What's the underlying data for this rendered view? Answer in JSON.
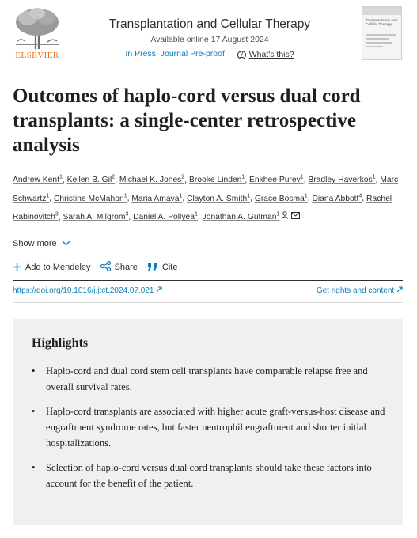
{
  "header": {
    "publisher": "ELSEVIER",
    "journal_title": "Transplantation and Cellular Therapy",
    "available_online": "Available online 17 August 2024",
    "in_press": "In Press, Journal Pre-proof",
    "whats_this": "What's this?",
    "cover": {
      "title": "Transplantation and Cellular Therapy"
    }
  },
  "article": {
    "title": "Outcomes of haplo-cord versus dual cord transplants: a single-center retrospective analysis",
    "authors": [
      {
        "name": "Andrew Kent",
        "sup": "1"
      },
      {
        "name": "Kellen B. Gil",
        "sup": "2"
      },
      {
        "name": "Michael K. Jones",
        "sup": "2"
      },
      {
        "name": "Brooke Linden",
        "sup": "1"
      },
      {
        "name": "Enkhee Purev",
        "sup": "1"
      },
      {
        "name": "Bradley Haverkos",
        "sup": "1"
      },
      {
        "name": "Marc Schwartz",
        "sup": "1"
      },
      {
        "name": "Christine McMahon",
        "sup": "1"
      },
      {
        "name": "Maria Amaya",
        "sup": "1"
      },
      {
        "name": "Clayton A. Smith",
        "sup": "1"
      },
      {
        "name": "Grace Bosma",
        "sup": "1"
      },
      {
        "name": "Diana Abbott",
        "sup": "4"
      },
      {
        "name": "Rachel Rabinovitch",
        "sup": "3"
      },
      {
        "name": "Sarah A. Milgrom",
        "sup": "3"
      },
      {
        "name": "Daniel A. Pollyea",
        "sup": "1"
      },
      {
        "name": "Jonathan A. Gutman",
        "sup": "1"
      }
    ],
    "show_more": "Show more",
    "actions": {
      "mendeley": "Add to Mendeley",
      "share": "Share",
      "cite": "Cite"
    },
    "doi": "https://doi.org/10.1016/j.jtct.2024.07.021",
    "rights": "Get rights and content"
  },
  "highlights": {
    "title": "Highlights",
    "items": [
      "Haplo-cord and dual cord stem cell transplants have comparable relapse free and overall survival rates.",
      "Haplo-cord transplants are associated with higher acute graft-versus-host disease and engraftment syndrome rates, but faster neutrophil engraftment and shorter initial hospitalizations.",
      "Selection of haplo-cord versus dual cord transplants should take these factors into account for the benefit of the patient."
    ]
  },
  "colors": {
    "link": "#0c7dbb",
    "elsevier_orange": "#e9711c",
    "highlight_bg": "#f0f0f0"
  },
  "icons": [
    "elsevier-tree-logo",
    "help-icon",
    "plus-icon",
    "share-icon",
    "cite-icon",
    "external-link-icon",
    "person-icon",
    "mail-icon",
    "chevron-down-icon"
  ]
}
